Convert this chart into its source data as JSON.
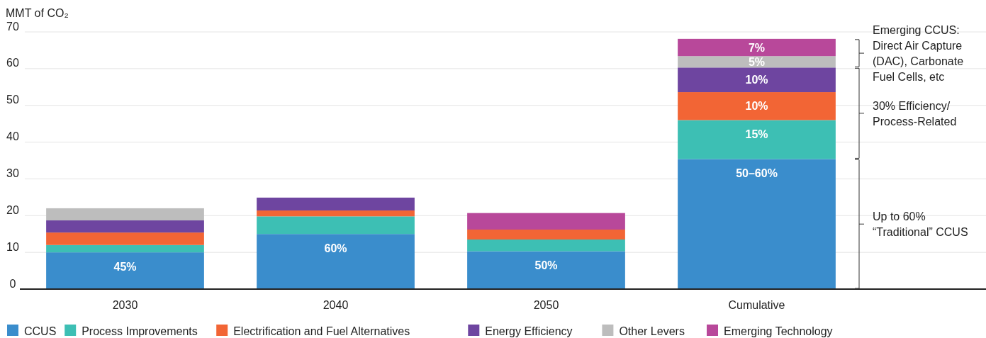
{
  "chart_data": {
    "type": "bar",
    "stacked": true,
    "ylabel": "MMT of CO₂",
    "categories": [
      "2030",
      "2040",
      "2050",
      "Cumulative"
    ],
    "ylim": [
      0,
      70
    ],
    "yticks": [
      0,
      10,
      20,
      30,
      40,
      50,
      60,
      70
    ],
    "grid": "y",
    "legend": "bottom",
    "series": [
      {
        "name": "CCUS",
        "color": "#3a8dcc",
        "values": [
          10,
          15,
          10.3,
          35.4
        ]
      },
      {
        "name": "Process Improvements",
        "color": "#3dbfb4",
        "values": [
          2,
          4.8,
          3.2,
          10.6
        ]
      },
      {
        "name": "Electrification and Fuel Alternatives",
        "color": "#f26535",
        "values": [
          3.4,
          1.6,
          2.7,
          7.6
        ]
      },
      {
        "name": "Energy Efficiency",
        "color": "#6e45a0",
        "values": [
          3.3,
          3.5,
          null,
          6.7
        ]
      },
      {
        "name": "Other Levers",
        "color": "#bdbdbd",
        "values": [
          3.3,
          null,
          null,
          3.1
        ]
      },
      {
        "name": "Emerging Technology",
        "color": "#b8489a",
        "values": [
          null,
          null,
          4.5,
          4.7
        ]
      }
    ],
    "annotations": [
      {
        "text": "45%",
        "x": "2030",
        "y": 10
      },
      {
        "text": "60%",
        "x": "2040",
        "y": 15
      },
      {
        "text": "50%",
        "x": "2050",
        "y": 10.3
      },
      {
        "text": "50–60%",
        "x": "Cumulative",
        "y": 35.4
      },
      {
        "text": "15%",
        "x": "Cumulative",
        "y": 46
      },
      {
        "text": "10%",
        "x": "Cumulative",
        "y": 53.6
      },
      {
        "text": "10%",
        "x": "Cumulative",
        "y": 60.3
      },
      {
        "text": "5%",
        "x": "Cumulative",
        "y": 63.4
      },
      {
        "text": "7%",
        "x": "Cumulative",
        "y": 68.1
      },
      "Emerging CCUS:\nDirect Air Capture\n(DAC), Carbonate\nFuel Cells, etc",
      "30% Efficiency/\nProcess-Related",
      "Up to 60%\n“Traditional” CCUS"
    ]
  }
}
